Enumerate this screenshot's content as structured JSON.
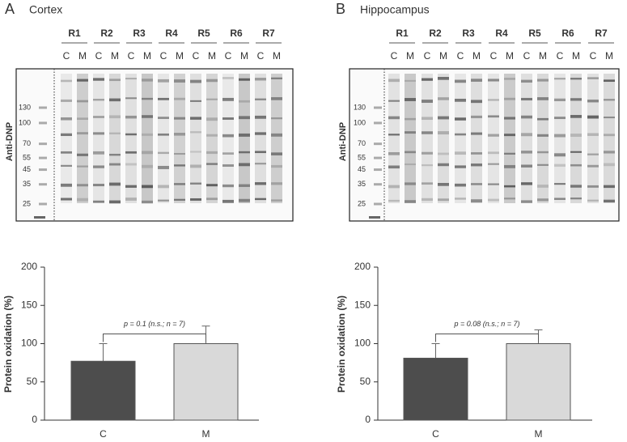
{
  "panels": [
    {
      "letter": "A",
      "title": "Cortex",
      "blot_label": "Anti-DNP",
      "lanes": [
        "R1",
        "R2",
        "R3",
        "R4",
        "R5",
        "R6",
        "R7"
      ],
      "conditions": [
        "C",
        "M"
      ],
      "markers": [
        130,
        100,
        70,
        55,
        45,
        35,
        25
      ]
    },
    {
      "letter": "B",
      "title": "Hippocampus",
      "blot_label": "Anti-DNP",
      "lanes": [
        "R1",
        "R2",
        "R3",
        "R4",
        "R5",
        "R6",
        "R7"
      ],
      "conditions": [
        "C",
        "M"
      ],
      "markers": [
        130,
        100,
        70,
        55,
        45,
        35,
        25
      ]
    }
  ],
  "chart_data": [
    {
      "type": "bar",
      "y_label": "Protein oxidation (%)",
      "categories": [
        "C",
        "M"
      ],
      "values": [
        77,
        100
      ],
      "errors": [
        23,
        23
      ],
      "colors": [
        "#4d4d4d",
        "#d9d9d9"
      ],
      "annotation": "p = 0.1 (n.s.; n = 7)",
      "ylim": [
        0,
        200
      ],
      "yticks": [
        0,
        50,
        100,
        150,
        200
      ]
    },
    {
      "type": "bar",
      "y_label": "Protein oxidation (%)",
      "categories": [
        "C",
        "M"
      ],
      "values": [
        81,
        100
      ],
      "errors": [
        19,
        18
      ],
      "colors": [
        "#4d4d4d",
        "#d9d9d9"
      ],
      "annotation": "p = 0.08 (n.s.; n = 7)",
      "ylim": [
        0,
        200
      ],
      "yticks": [
        0,
        50,
        100,
        150,
        200
      ]
    }
  ]
}
